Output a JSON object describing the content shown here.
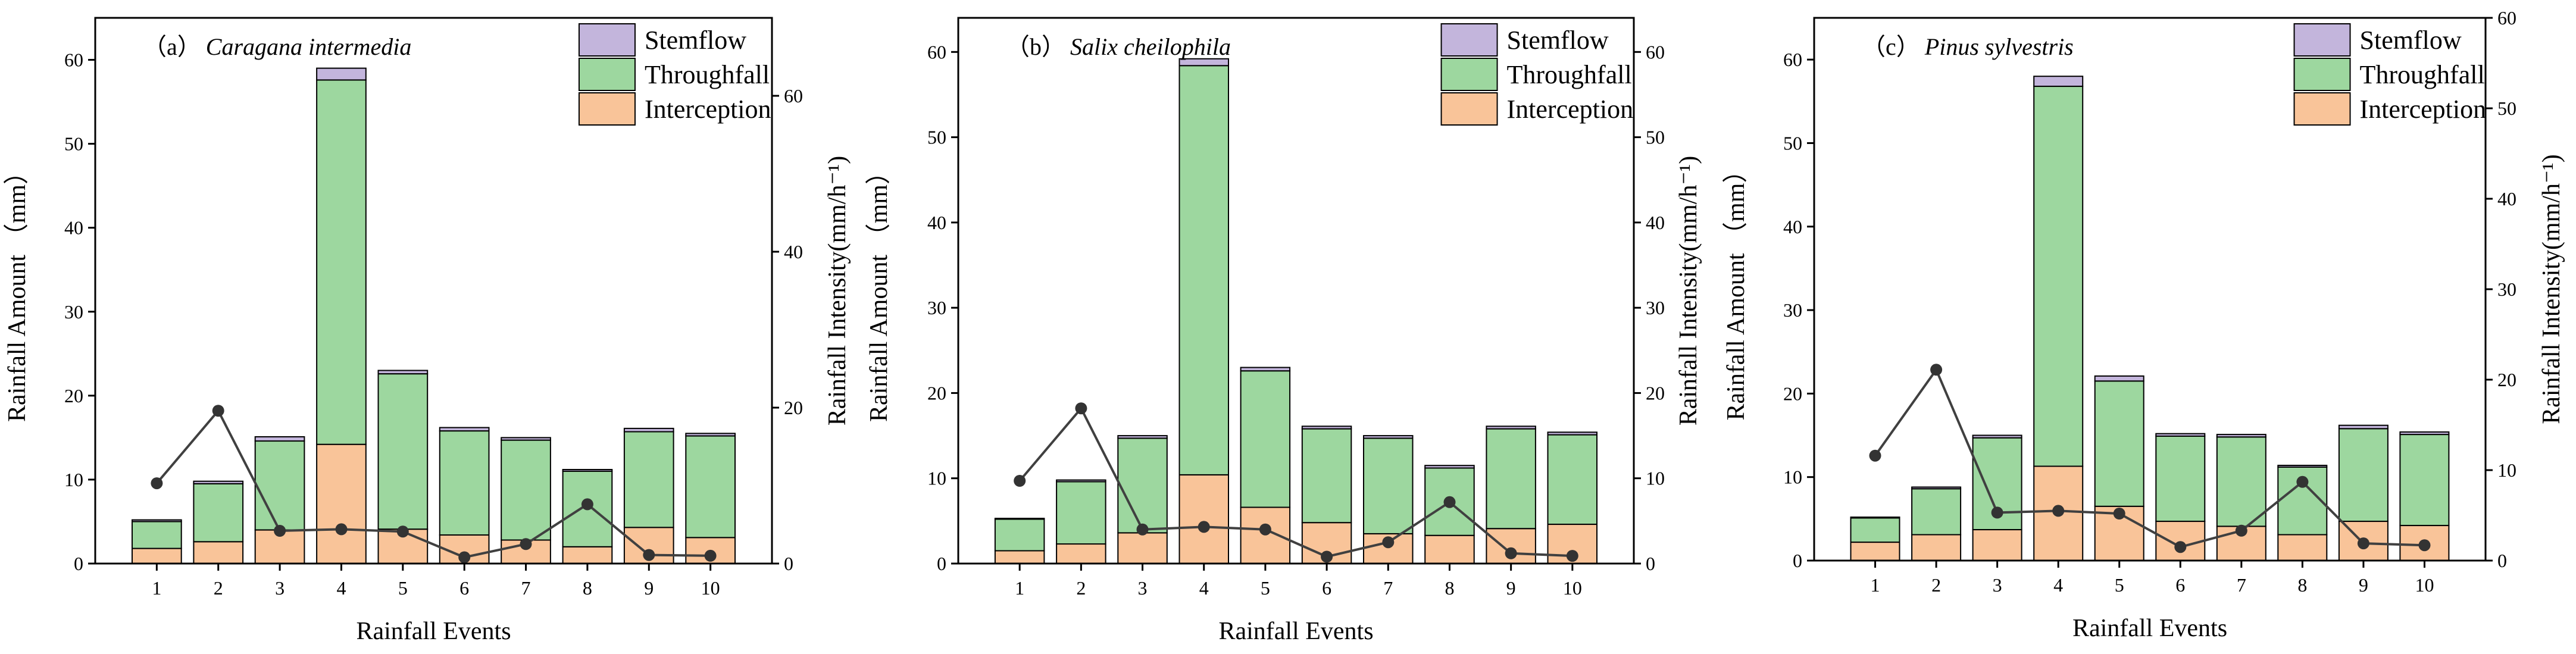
{
  "colors": {
    "interception": "#f9c499",
    "throughfall": "#9dd79f",
    "stemflow": "#c3b5dc",
    "line": "#404040",
    "marker": "#333333"
  },
  "chart_data": [
    {
      "type": "bar",
      "stacked": true,
      "panel_label": "（a）",
      "species": "Caragana intermedia",
      "xlabel": "Rainfall Events",
      "ylabel": "Rainfall Amount （mm）",
      "y2label": "Rainfall Intensity(mm/h⁻¹)",
      "categories": [
        "1",
        "2",
        "3",
        "4",
        "5",
        "6",
        "7",
        "8",
        "9",
        "10"
      ],
      "ylim": [
        0,
        65
      ],
      "yticks": [
        0,
        10,
        20,
        30,
        40,
        50,
        60
      ],
      "y2lim": [
        0,
        70
      ],
      "y2ticks": [
        0,
        20,
        40,
        60
      ],
      "legend": [
        "Stemflow",
        "Throughfall",
        "Interception"
      ],
      "series": [
        {
          "name": "Interception",
          "values": [
            1.8,
            2.6,
            4.0,
            14.2,
            4.1,
            3.4,
            2.8,
            2.0,
            4.3,
            3.1
          ]
        },
        {
          "name": "Throughfall",
          "values": [
            3.2,
            6.9,
            10.6,
            43.4,
            18.5,
            12.4,
            11.9,
            9.0,
            11.4,
            12.1
          ]
        },
        {
          "name": "Stemflow",
          "values": [
            0.2,
            0.3,
            0.5,
            1.4,
            0.4,
            0.4,
            0.3,
            0.2,
            0.4,
            0.3
          ]
        }
      ],
      "intensity": [
        10.3,
        19.6,
        4.2,
        4.4,
        4.1,
        0.8,
        2.5,
        7.6,
        1.1,
        1.0
      ]
    },
    {
      "type": "bar",
      "stacked": true,
      "panel_label": "（b）",
      "species": "Salix cheilophila",
      "xlabel": "Rainfall Events",
      "ylabel": "Rainfall Amount （mm）",
      "y2label": "Rainfall Intensity(mm/h⁻¹)",
      "categories": [
        "1",
        "2",
        "3",
        "4",
        "5",
        "6",
        "7",
        "8",
        "9",
        "10"
      ],
      "ylim": [
        0,
        64
      ],
      "yticks": [
        0,
        10,
        20,
        30,
        40,
        50,
        60
      ],
      "y2lim": [
        0,
        64
      ],
      "y2ticks": [
        0,
        10,
        20,
        30,
        40,
        50,
        60
      ],
      "legend": [
        "Stemflow",
        "Throughfall",
        "Interception"
      ],
      "series": [
        {
          "name": "Interception",
          "values": [
            1.5,
            2.3,
            3.6,
            10.4,
            6.6,
            4.8,
            3.5,
            3.3,
            4.1,
            4.6
          ]
        },
        {
          "name": "Throughfall",
          "values": [
            3.7,
            7.3,
            11.1,
            48.0,
            16.0,
            11.0,
            11.2,
            7.9,
            11.7,
            10.5
          ]
        },
        {
          "name": "Stemflow",
          "values": [
            0.1,
            0.2,
            0.3,
            0.8,
            0.4,
            0.3,
            0.3,
            0.3,
            0.3,
            0.3
          ]
        }
      ],
      "intensity": [
        9.7,
        18.2,
        4.0,
        4.3,
        4.0,
        0.8,
        2.5,
        7.2,
        1.2,
        0.9
      ]
    },
    {
      "type": "bar",
      "stacked": true,
      "panel_label": "（c）",
      "species": "Pinus sylvestris",
      "xlabel": "Rainfall Events",
      "ylabel": "Rainfall Amount （mm）",
      "y2label": "Rainfall Intensity(mm/h⁻¹)",
      "categories": [
        "1",
        "2",
        "3",
        "4",
        "5",
        "6",
        "7",
        "8",
        "9",
        "10"
      ],
      "ylim": [
        0,
        65
      ],
      "yticks": [
        0,
        10,
        20,
        30,
        40,
        50,
        60
      ],
      "y2lim": [
        0,
        60
      ],
      "y2ticks": [
        0,
        10,
        20,
        30,
        40,
        50,
        60
      ],
      "legend": [
        "Stemflow",
        "Throughfall",
        "Interception"
      ],
      "series": [
        {
          "name": "Interception",
          "values": [
            2.2,
            3.1,
            3.7,
            11.3,
            6.5,
            4.7,
            4.1,
            3.1,
            4.7,
            4.2
          ]
        },
        {
          "name": "Throughfall",
          "values": [
            2.9,
            5.5,
            11.0,
            45.5,
            15.0,
            10.2,
            10.7,
            8.1,
            11.1,
            10.9
          ]
        },
        {
          "name": "Stemflow",
          "values": [
            0.1,
            0.2,
            0.3,
            1.2,
            0.6,
            0.3,
            0.3,
            0.2,
            0.4,
            0.3
          ]
        }
      ],
      "intensity": [
        11.6,
        21.1,
        5.3,
        5.5,
        5.2,
        1.5,
        3.3,
        8.7,
        1.9,
        1.7
      ]
    }
  ]
}
